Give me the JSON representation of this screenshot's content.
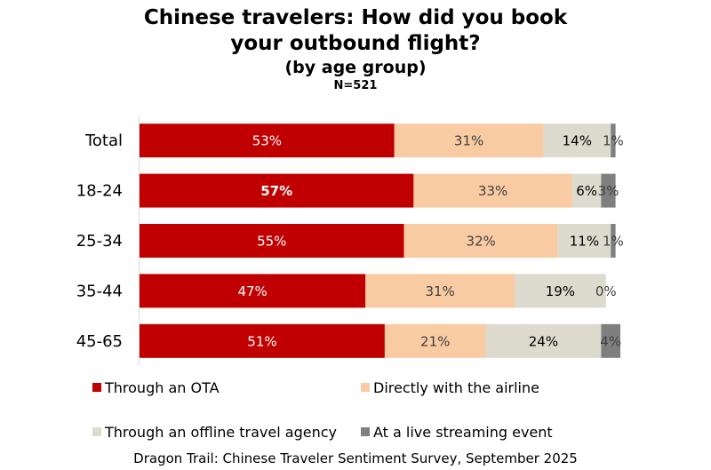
{
  "chart_data": {
    "type": "bar",
    "orientation": "horizontal",
    "stacked": true,
    "title_lines": [
      "Chinese travelers: How did you book",
      "your outbound flight?"
    ],
    "subtitle": "(by age group)",
    "sample_size": "N=521",
    "categories": [
      "Total",
      "18-24",
      "25-34",
      "35-44",
      "45-65"
    ],
    "series": [
      {
        "name": "Through an OTA",
        "color": "#c00000",
        "label_color": "#ffffff",
        "values": [
          53,
          57,
          55,
          47,
          51
        ],
        "labels": [
          "53%",
          "57%",
          "55%",
          "47%",
          "51%"
        ]
      },
      {
        "name": "Directly with the airline",
        "color": "#f8cba3",
        "label_color": "#404040",
        "values": [
          31,
          33,
          32,
          31,
          21
        ],
        "labels": [
          "31%",
          "33%",
          "32%",
          "31%",
          "21%"
        ]
      },
      {
        "name": "Through an offline travel agency",
        "color": "#dddace",
        "label_color": "#000000",
        "values": [
          14,
          6,
          11,
          19,
          24
        ],
        "labels": [
          "14%",
          "6%",
          "11%",
          "19%",
          "24%"
        ]
      },
      {
        "name": "At a live streaming event",
        "color": "#7f7f7f",
        "label_color": "#404040",
        "values": [
          1,
          3,
          1,
          0,
          4
        ],
        "labels": [
          "1%",
          "3%",
          "1%",
          "0%",
          "4%"
        ]
      }
    ],
    "xlim": [
      0,
      100
    ],
    "grid": false,
    "legend_position": "bottom",
    "source": "Dragon Trail: Chinese Traveler Sentiment Survey, September 2025"
  }
}
